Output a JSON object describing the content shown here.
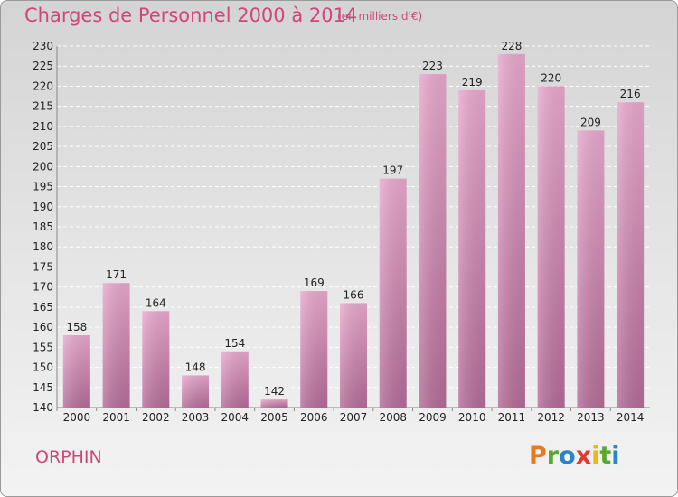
{
  "header": {
    "title": "Charges de Personnel 2000 à 2014",
    "subtitle": "(en milliers d'€)"
  },
  "footer": {
    "commune": "ORPHIN",
    "logo_letters": [
      {
        "ch": "P",
        "color": "#e87a1e"
      },
      {
        "ch": "r",
        "color": "#5aa832"
      },
      {
        "ch": "o",
        "color": "#2a84c8"
      },
      {
        "ch": "x",
        "color": "#e23a2e"
      },
      {
        "ch": "i",
        "color": "#e8b81e"
      },
      {
        "ch": "t",
        "color": "#5aa832"
      },
      {
        "ch": "i",
        "color": "#2a84c8"
      }
    ]
  },
  "chart_data": {
    "type": "bar",
    "title": "Charges de Personnel 2000 à 2014",
    "subtitle": "(en milliers d'€)",
    "categories": [
      "2000",
      "2001",
      "2002",
      "2003",
      "2004",
      "2005",
      "2006",
      "2007",
      "2008",
      "2009",
      "2010",
      "2011",
      "2012",
      "2013",
      "2014"
    ],
    "values": [
      158,
      171,
      164,
      148,
      154,
      142,
      169,
      166,
      197,
      223,
      219,
      228,
      220,
      209,
      216
    ],
    "ylim": [
      140,
      230
    ],
    "yticks": [
      140,
      145,
      150,
      155,
      160,
      165,
      170,
      175,
      180,
      185,
      190,
      195,
      200,
      205,
      210,
      215,
      220,
      225,
      230
    ],
    "grid": true,
    "bar_color_top": "#e8a8cc",
    "bar_color_bottom": "#b46c98"
  }
}
